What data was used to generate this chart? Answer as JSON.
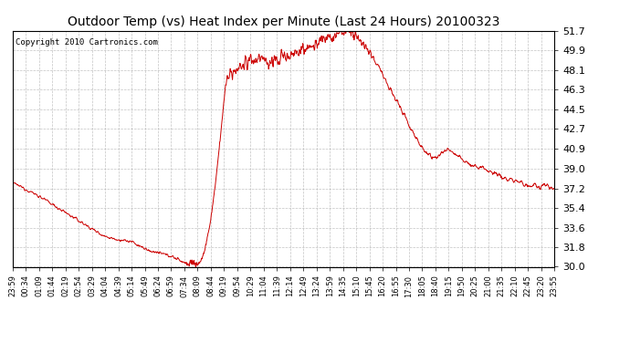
{
  "title": "Outdoor Temp (vs) Heat Index per Minute (Last 24 Hours) 20100323",
  "copyright": "Copyright 2010 Cartronics.com",
  "line_color": "#cc0000",
  "background_color": "#ffffff",
  "plot_bg_color": "#ffffff",
  "grid_color": "#aaaaaa",
  "ylim": [
    30.0,
    51.7
  ],
  "yticks": [
    30.0,
    31.8,
    33.6,
    35.4,
    37.2,
    39.0,
    40.9,
    42.7,
    44.5,
    46.3,
    48.1,
    49.9,
    51.7
  ],
  "xtick_labels": [
    "23:59",
    "00:34",
    "01:09",
    "01:44",
    "02:19",
    "02:54",
    "03:29",
    "04:04",
    "04:39",
    "05:14",
    "05:49",
    "06:24",
    "06:59",
    "07:34",
    "08:09",
    "08:44",
    "09:19",
    "09:54",
    "10:29",
    "11:04",
    "11:39",
    "12:14",
    "12:49",
    "13:24",
    "13:59",
    "14:35",
    "15:10",
    "15:45",
    "16:20",
    "16:55",
    "17:30",
    "18:05",
    "18:40",
    "19:15",
    "19:50",
    "20:25",
    "21:00",
    "21:35",
    "22:10",
    "22:45",
    "23:20",
    "23:55"
  ],
  "title_fontsize": 10,
  "copyright_fontsize": 6.5,
  "ytick_fontsize": 8,
  "xtick_fontsize": 6
}
